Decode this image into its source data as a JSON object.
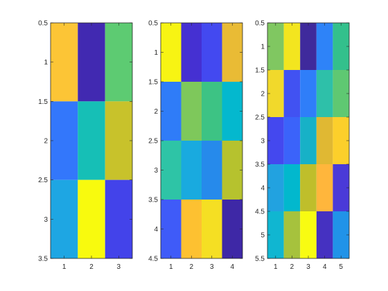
{
  "chart_data": [
    {
      "type": "heatmap",
      "title": "",
      "xlabel": "",
      "ylabel": "",
      "xticks": [
        "1",
        "2",
        "3"
      ],
      "yticks": [
        "0.5",
        "1",
        "1.5",
        "2",
        "2.5",
        "3",
        "3.5"
      ],
      "ylim": [
        0.5,
        3.5
      ],
      "y_direction": "reversed",
      "colors": [
        [
          "#fcc536",
          "#4129b1",
          "#5dcb72"
        ],
        [
          "#3377fb",
          "#16bfb6",
          "#c8c22b"
        ],
        [
          "#1ea6e3",
          "#f8fa0e",
          "#4343ea"
        ]
      ]
    },
    {
      "type": "heatmap",
      "title": "",
      "xlabel": "",
      "ylabel": "",
      "xticks": [
        "1",
        "2",
        "3",
        "4"
      ],
      "yticks": [
        "0.5",
        "1",
        "1.5",
        "2",
        "2.5",
        "3",
        "3.5",
        "4",
        "4.5"
      ],
      "ylim": [
        0.5,
        4.5
      ],
      "y_direction": "reversed",
      "colors": [
        [
          "#f7f413",
          "#4530d2",
          "#4349f0",
          "#e9bb35"
        ],
        [
          "#2f7cf8",
          "#7ec85b",
          "#3dc384",
          "#04b8ce"
        ],
        [
          "#2ec4a6",
          "#19aadf",
          "#268aeb",
          "#b6c22e"
        ],
        [
          "#3f5bf8",
          "#fdc131",
          "#f5df23",
          "#3e28a6"
        ]
      ]
    },
    {
      "type": "heatmap",
      "title": "",
      "xlabel": "",
      "ylabel": "",
      "xticks": [
        "1",
        "2",
        "3",
        "4",
        "5"
      ],
      "yticks": [
        "0.5",
        "1",
        "1.5",
        "2",
        "2.5",
        "3",
        "3.5",
        "4",
        "4.5",
        "5",
        "5.5"
      ],
      "ylim": [
        0.5,
        5.5
      ],
      "y_direction": "reversed",
      "colors": [
        [
          "#80c761",
          "#f3e51f",
          "#3f2a9c",
          "#2e83f8",
          "#33c08c"
        ],
        [
          "#f1d92b",
          "#4152f2",
          "#2f7ef9",
          "#2ec0a9",
          "#5fc872"
        ],
        [
          "#4448ef",
          "#3b63fa",
          "#17b1c7",
          "#e0b833",
          "#fccf2b"
        ],
        [
          "#22a2e0",
          "#02b8cd",
          "#bfbe2b",
          "#ffb63c",
          "#4a3ad8"
        ],
        [
          "#10b6d1",
          "#a6c23d",
          "#f8fb12",
          "#4531c1",
          "#2193e8"
        ]
      ]
    }
  ]
}
